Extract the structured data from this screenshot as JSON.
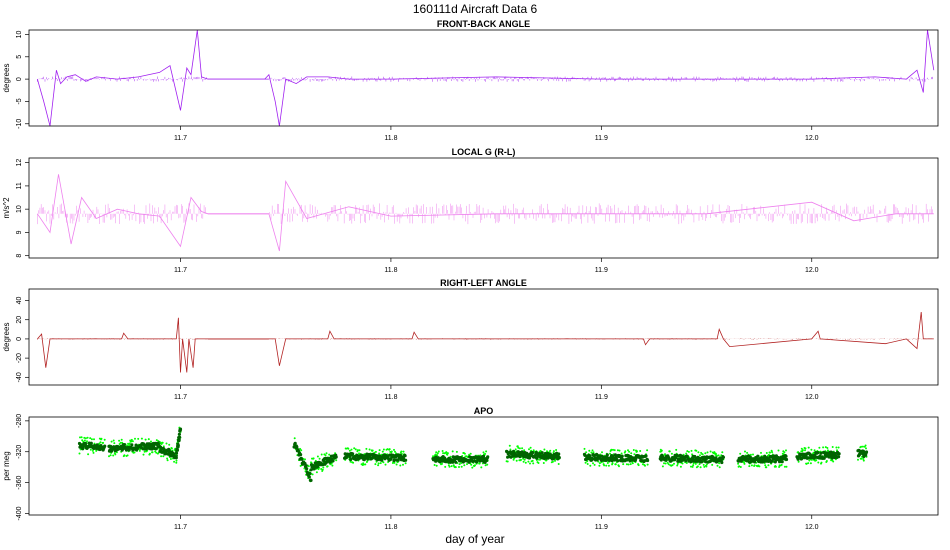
{
  "figure": {
    "title": "160111d    Aircraft Data 6",
    "xlabel": "day of year"
  },
  "chart_data": [
    {
      "type": "line",
      "title": "FRONT-BACK ANGLE",
      "ylabel": "degrees",
      "xlim": [
        11.628,
        12.06
      ],
      "ylim": [
        -10.5,
        11
      ],
      "yticks": [
        -10,
        -5,
        0,
        5,
        10
      ],
      "xticks": [
        11.7,
        11.8,
        11.9,
        12.0
      ],
      "xtick_labels": [
        "11.7",
        "11.8",
        "11.9",
        "12.0"
      ],
      "grid": false,
      "color": "#a020f0",
      "series": [
        {
          "x": [
            11.632,
            11.635,
            11.638,
            11.641,
            11.643,
            11.646,
            11.65,
            11.655,
            11.66,
            11.67,
            11.68,
            11.69,
            11.695,
            11.7,
            11.703,
            11.705,
            11.708,
            11.71,
            11.713,
            11.72,
            11.73,
            11.74,
            11.742,
            11.745,
            11.747,
            11.75,
            11.755,
            11.76,
            11.77,
            11.78,
            11.8,
            11.85,
            11.9,
            11.95,
            12.0,
            12.03,
            12.045,
            12.05,
            12.053,
            12.055,
            12.058
          ],
          "y": [
            0,
            -5,
            -10.5,
            2,
            -1,
            0.5,
            1,
            -0.5,
            0.5,
            0,
            0.5,
            1.5,
            3,
            -7,
            2.5,
            1,
            11,
            0.5,
            0,
            0,
            0,
            0,
            1,
            -5,
            -10.5,
            0,
            -1,
            0.5,
            0.5,
            0,
            0,
            0.5,
            0,
            0,
            0,
            0.5,
            0,
            2,
            -3,
            11,
            2
          ]
        }
      ]
    },
    {
      "type": "line",
      "title": "LOCAL G (R-L)",
      "ylabel": "m/s^2",
      "xlim": [
        11.628,
        12.06
      ],
      "ylim": [
        7.9,
        12.2
      ],
      "yticks": [
        8,
        9,
        10,
        11,
        12
      ],
      "xticks": [
        11.7,
        11.8,
        11.9,
        12.0
      ],
      "xtick_labels": [
        "11.7",
        "11.8",
        "11.9",
        "12.0"
      ],
      "grid": false,
      "color": "#ee82ee",
      "series": [
        {
          "x": [
            11.632,
            11.638,
            11.642,
            11.648,
            11.653,
            11.66,
            11.67,
            11.68,
            11.69,
            11.7,
            11.705,
            11.71,
            11.713,
            11.73,
            11.742,
            11.747,
            11.75,
            11.76,
            11.78,
            11.8,
            11.85,
            11.9,
            11.95,
            12.0,
            12.02,
            12.04,
            12.058
          ],
          "y": [
            9.8,
            9.0,
            11.5,
            8.5,
            10.5,
            9.6,
            10.0,
            9.8,
            9.7,
            8.4,
            10.5,
            9.9,
            9.8,
            9.8,
            9.8,
            8.2,
            11.2,
            9.6,
            10.1,
            9.7,
            9.8,
            9.8,
            9.8,
            10.3,
            9.5,
            9.8,
            9.8
          ]
        }
      ]
    },
    {
      "type": "line",
      "title": "RIGHT-LEFT ANGLE",
      "ylabel": "degrees",
      "xlim": [
        11.628,
        12.06
      ],
      "ylim": [
        -48,
        52
      ],
      "yticks": [
        -40,
        -20,
        0,
        20,
        40
      ],
      "xticks": [
        11.7,
        11.8,
        11.9,
        12.0
      ],
      "xtick_labels": [
        "11.7",
        "11.8",
        "11.9",
        "12.0"
      ],
      "grid": false,
      "color": "#b22222",
      "series": [
        {
          "x": [
            11.632,
            11.634,
            11.636,
            11.638,
            11.65,
            11.672,
            11.673,
            11.675,
            11.69,
            11.698,
            11.699,
            11.7,
            11.701,
            11.703,
            11.704,
            11.706,
            11.707,
            11.71,
            11.713,
            11.742,
            11.745,
            11.747,
            11.75,
            11.77,
            11.771,
            11.773,
            11.81,
            11.811,
            11.813,
            11.92,
            11.921,
            11.923,
            11.955,
            11.956,
            11.958,
            11.961,
            12.0,
            12.003,
            12.004,
            12.035,
            12.045,
            12.05,
            12.052,
            12.053,
            12.055,
            12.058
          ],
          "y": [
            0,
            5,
            -30,
            0,
            0,
            0,
            6,
            0,
            0,
            0,
            22,
            -35,
            0,
            -35,
            0,
            -30,
            0,
            0,
            0,
            0,
            0,
            -28,
            0,
            0,
            8,
            0,
            0,
            7,
            0,
            0,
            -6,
            0,
            0,
            10,
            0,
            -8,
            0,
            8,
            0,
            -5,
            0,
            -10,
            28,
            0,
            0,
            0
          ]
        }
      ]
    },
    {
      "type": "scatter",
      "title": "APO",
      "ylabel": "per meg",
      "xlim": [
        11.628,
        12.06
      ],
      "ylim": [
        -402,
        -275
      ],
      "yticks": [
        -280,
        -320,
        -360,
        -400
      ],
      "xticks": [
        11.7,
        11.8,
        11.9,
        12.0
      ],
      "xtick_labels": [
        "11.7",
        "11.8",
        "11.9",
        "12.0"
      ],
      "grid": false,
      "colors": [
        "#006400",
        "#00ff00"
      ],
      "segments": [
        {
          "x0": 11.652,
          "x1": 11.664,
          "y0": -312,
          "y1": -314
        },
        {
          "x0": 11.666,
          "x1": 11.69,
          "y0": -316,
          "y1": -312
        },
        {
          "x0": 11.69,
          "x1": 11.698,
          "y0": -316,
          "y1": -325
        },
        {
          "x0": 11.698,
          "x1": 11.7,
          "y0": -325,
          "y1": -290
        },
        {
          "x0": 11.754,
          "x1": 11.762,
          "y0": -310,
          "y1": -355
        },
        {
          "x0": 11.762,
          "x1": 11.774,
          "y0": -340,
          "y1": -327
        },
        {
          "x0": 11.778,
          "x1": 11.807,
          "y0": -326,
          "y1": -328
        },
        {
          "x0": 11.82,
          "x1": 11.846,
          "y0": -330,
          "y1": -330
        },
        {
          "x0": 11.855,
          "x1": 11.88,
          "y0": -323,
          "y1": -326
        },
        {
          "x0": 11.892,
          "x1": 11.922,
          "y0": -327,
          "y1": -329
        },
        {
          "x0": 11.928,
          "x1": 11.958,
          "y0": -328,
          "y1": -330
        },
        {
          "x0": 11.965,
          "x1": 11.988,
          "y0": -330,
          "y1": -329
        },
        {
          "x0": 11.993,
          "x1": 12.013,
          "y0": -326,
          "y1": -324
        },
        {
          "x0": 12.022,
          "x1": 12.026,
          "y0": -322,
          "y1": -323
        }
      ]
    }
  ]
}
